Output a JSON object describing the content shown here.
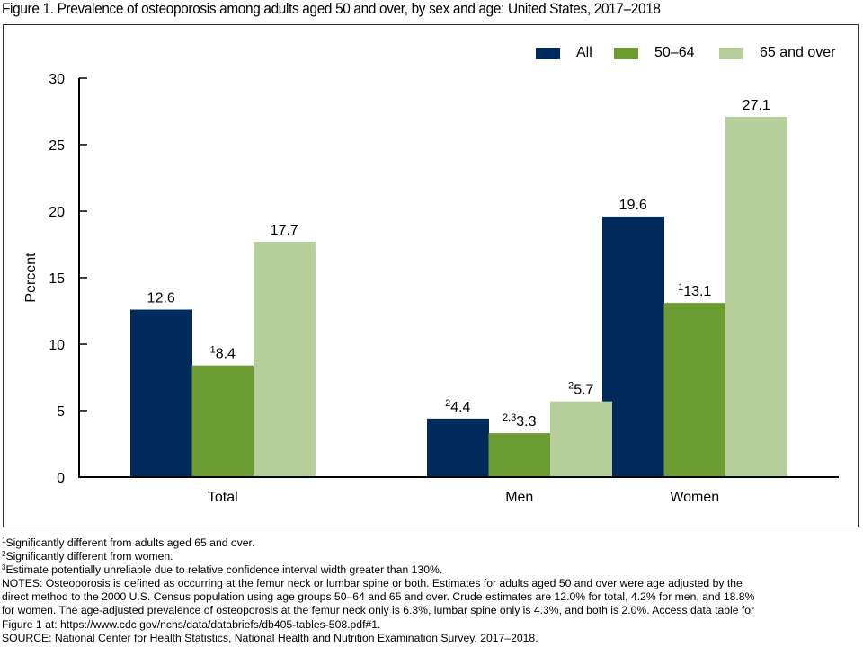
{
  "title": "Figure 1. Prevalence of osteoporosis among adults aged 50 and over, by sex and age: United States, 2017–2018",
  "chart_data": {
    "type": "bar",
    "title": "Prevalence of osteoporosis among adults aged 50 and over, by sex and age: United States, 2017–2018",
    "xlabel": "",
    "ylabel": "Percent",
    "ylim": [
      0,
      30
    ],
    "yticks": [
      0,
      5,
      10,
      15,
      20,
      25,
      30
    ],
    "grid": false,
    "legend_position": "top-right",
    "categories": [
      "Total",
      "Men",
      "Women"
    ],
    "series": [
      {
        "name": "All",
        "color": "#002a5c",
        "values": [
          12.6,
          4.4,
          19.6
        ],
        "labels": [
          "12.6",
          "4.4",
          "19.6"
        ],
        "superscripts": [
          "",
          "2",
          ""
        ]
      },
      {
        "name": "50–64",
        "color": "#6b9c31",
        "values": [
          8.4,
          3.3,
          13.1
        ],
        "labels": [
          "8.4",
          "3.3",
          "13.1"
        ],
        "superscripts": [
          "1",
          "2,3",
          "1"
        ]
      },
      {
        "name": "65 and over",
        "color": "#b6cf9a",
        "values": [
          17.7,
          5.7,
          27.1
        ],
        "labels": [
          "17.7",
          "5.7",
          "27.1"
        ],
        "superscripts": [
          "",
          "2",
          ""
        ]
      }
    ]
  },
  "footnotes": [
    {
      "sup": "1",
      "text": "Significantly different from adults aged 65 and over."
    },
    {
      "sup": "2",
      "text": "Significantly different from women."
    },
    {
      "sup": "3",
      "text": "Estimate potentially unreliable due to relative confidence interval width greater than 130%."
    }
  ],
  "notes_lines": [
    "NOTES: Osteoporosis is defined as occurring at the femur neck or lumbar spine or both. Estimates for adults aged 50 and over were age adjusted by the",
    "direct method to the 2000 U.S. Census population using age groups 50–64 and 65 and over. Crude estimates are 12.0% for total, 4.2% for men, and 18.8%",
    "for women. The age-adjusted prevalence of osteoporosis at the femur neck only is 6.3%, lumbar spine only is 4.3%, and both is 2.0%. Access data table for",
    "Figure 1 at: https://www.cdc.gov/nchs/data/databriefs/db405-tables-508.pdf#1."
  ],
  "source": "SOURCE: National Center for Health Statistics, National Health and Nutrition Examination Survey, 2017–2018."
}
